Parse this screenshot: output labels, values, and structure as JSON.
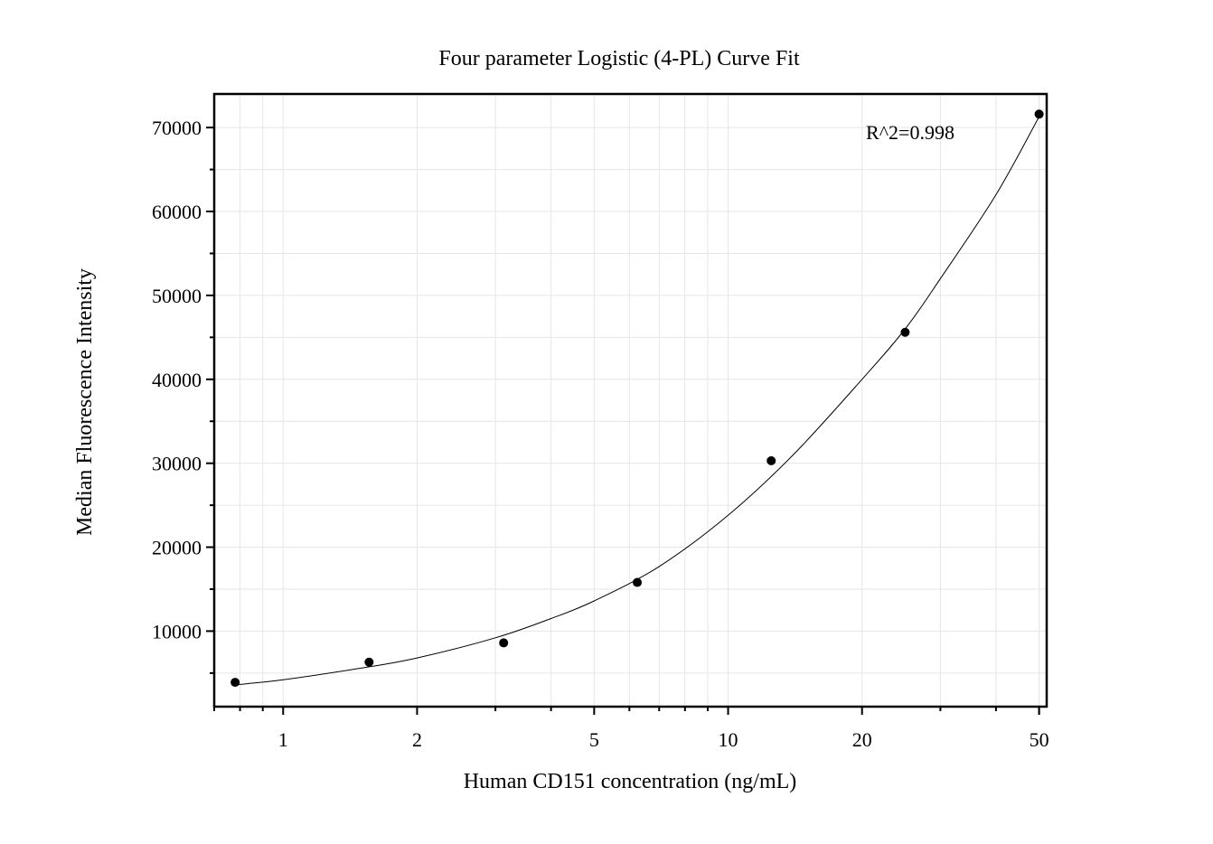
{
  "chart_data": {
    "type": "scatter",
    "title": "Four parameter Logistic (4-PL) Curve Fit",
    "xlabel": "Human CD151 concentration (ng/mL)",
    "ylabel": "Median Fluorescence Intensity",
    "x_scale": "log",
    "xlim": [
      0.7,
      52
    ],
    "ylim": [
      1000,
      74000
    ],
    "x_ticks": [
      1,
      2,
      5,
      10,
      20,
      50
    ],
    "y_ticks": [
      10000,
      20000,
      30000,
      40000,
      50000,
      60000,
      70000
    ],
    "grid": true,
    "annotation": "R^2=0.998",
    "series": [
      {
        "points": [
          {
            "x": 0.78,
            "y": 3900
          },
          {
            "x": 1.56,
            "y": 6300
          },
          {
            "x": 3.13,
            "y": 8600
          },
          {
            "x": 6.25,
            "y": 15800
          },
          {
            "x": 12.5,
            "y": 30300
          },
          {
            "x": 25,
            "y": 45600
          },
          {
            "x": 50,
            "y": 71600
          }
        ]
      }
    ],
    "fit_curve": {
      "type": "4PL",
      "points": [
        {
          "x": 0.78,
          "y": 3600
        },
        {
          "x": 1,
          "y": 4200
        },
        {
          "x": 1.5,
          "y": 5600
        },
        {
          "x": 2,
          "y": 6800
        },
        {
          "x": 3,
          "y": 9200
        },
        {
          "x": 4,
          "y": 11500
        },
        {
          "x": 5,
          "y": 13600
        },
        {
          "x": 7,
          "y": 17700
        },
        {
          "x": 10,
          "y": 23800
        },
        {
          "x": 14,
          "y": 31000
        },
        {
          "x": 20,
          "y": 40000
        },
        {
          "x": 25,
          "y": 46000
        },
        {
          "x": 30,
          "y": 52000
        },
        {
          "x": 40,
          "y": 62000
        },
        {
          "x": 50,
          "y": 71300
        }
      ]
    }
  }
}
